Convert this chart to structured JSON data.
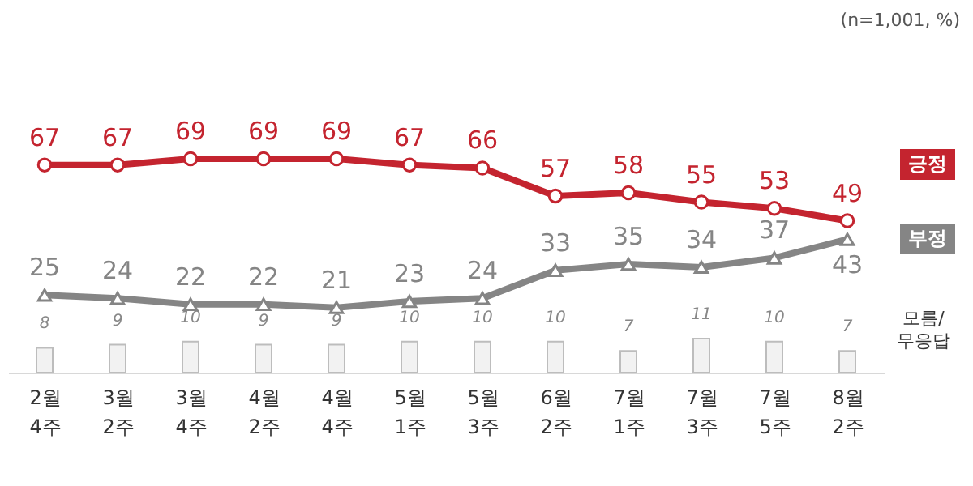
{
  "chart_data": {
    "type": "line",
    "annotations": [
      "(n=1,001, %)"
    ],
    "data_labels": true,
    "categories": [
      "2월 4주",
      "3월 2주",
      "3월 4주",
      "4월 2주",
      "4월 4주",
      "5월 1주",
      "5월 3주",
      "6월 2주",
      "7월 1주",
      "7월 3주",
      "7월 5주",
      "8월 2주"
    ],
    "series": [
      {
        "name": "긍정",
        "marker": "circle",
        "color": "#c4242f",
        "values": [
          67,
          67,
          69,
          69,
          69,
          67,
          66,
          57,
          58,
          55,
          53,
          49
        ]
      },
      {
        "name": "부정",
        "marker": "triangle",
        "color": "#858585",
        "values": [
          25,
          24,
          22,
          22,
          21,
          23,
          24,
          33,
          35,
          34,
          37,
          43
        ]
      },
      {
        "name": "모름/무응답",
        "type": "bar",
        "color": "#bdbdbd",
        "values": [
          8,
          9,
          10,
          9,
          9,
          10,
          10,
          10,
          7,
          11,
          10,
          7
        ]
      }
    ]
  }
}
